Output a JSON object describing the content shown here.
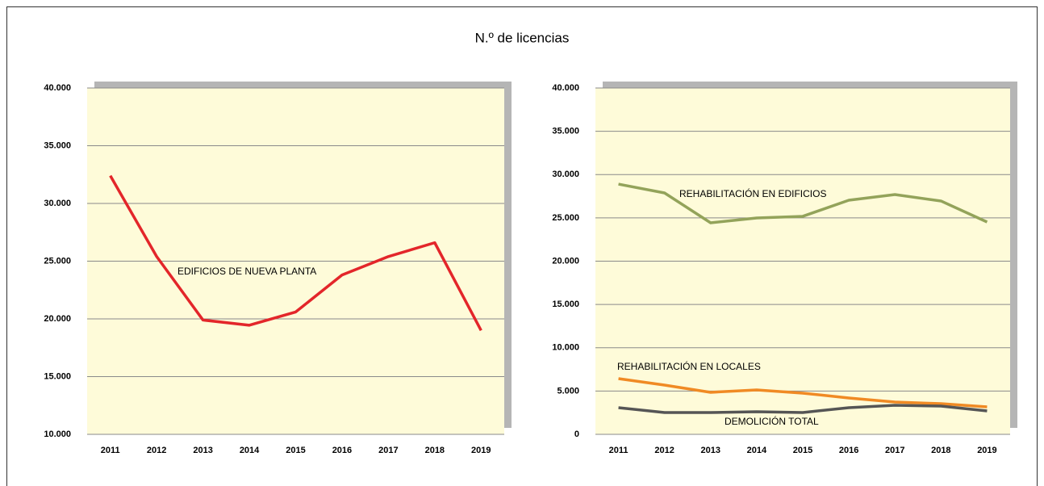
{
  "title": "N.º de licencias",
  "chart_data": [
    {
      "type": "line",
      "categories": [
        "2011",
        "2012",
        "2013",
        "2014",
        "2015",
        "2016",
        "2017",
        "2018",
        "2019"
      ],
      "series": [
        {
          "name": "EDIFICIOS DE NUEVA PLANTA",
          "color": "#e3262a",
          "values": [
            32400,
            25400,
            19900,
            19450,
            20600,
            23800,
            25400,
            26600,
            19000
          ]
        }
      ],
      "ylim": [
        10000,
        40000
      ],
      "yticks": [
        {
          "value": 10000,
          "label": "10.000"
        },
        {
          "value": 15000,
          "label": "15.000"
        },
        {
          "value": 20000,
          "label": "20.000"
        },
        {
          "value": 25000,
          "label": "25.000"
        },
        {
          "value": 30000,
          "label": "30.000"
        },
        {
          "value": 35000,
          "label": "35.000"
        },
        {
          "value": 40000,
          "label": "40.000"
        }
      ],
      "grid": true
    },
    {
      "type": "line",
      "categories": [
        "2011",
        "2012",
        "2013",
        "2014",
        "2015",
        "2016",
        "2017",
        "2018",
        "2019"
      ],
      "series": [
        {
          "name": "REHABILITACIÓN EN EDIFICIOS",
          "color": "#93a35a",
          "values": [
            28900,
            27880,
            24430,
            24990,
            25180,
            27040,
            27690,
            26950,
            24520
          ]
        },
        {
          "name": "REHABILITACIÓN EN LOCALES",
          "color": "#f08a24",
          "values": [
            6430,
            5690,
            4850,
            5130,
            4760,
            4200,
            3730,
            3540,
            3170
          ]
        },
        {
          "name": "DEMOLICIÓN TOTAL",
          "color": "#555555",
          "values": [
            3080,
            2520,
            2520,
            2610,
            2520,
            3080,
            3360,
            3260,
            2700
          ]
        }
      ],
      "ylim": [
        0,
        40000
      ],
      "yticks": [
        0,
        {
          "value": 5000,
          "label": "5.000"
        },
        {
          "value": 10000,
          "label": "10.000"
        },
        {
          "value": 15000,
          "label": "15.000"
        },
        {
          "value": 20000,
          "label": "20.000"
        },
        {
          "value": 25000,
          "label": "25.000"
        },
        {
          "value": 30000,
          "label": "30.000"
        },
        {
          "value": 35000,
          "label": "35.000"
        },
        {
          "value": 40000,
          "label": "40.000"
        }
      ],
      "grid": true
    }
  ]
}
